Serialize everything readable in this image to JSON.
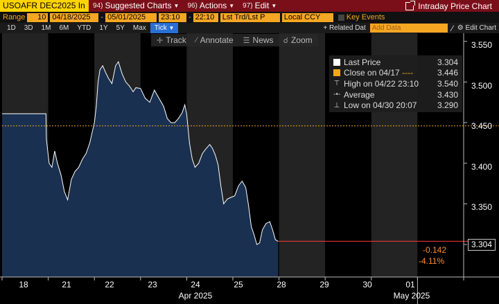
{
  "titlebar": {
    "security": "USOAFR DEC2025 In",
    "suggested_num": "94)",
    "suggested_label": "Suggested Charts",
    "actions_num": "96)",
    "actions_label": "Actions",
    "edit_num": "97)",
    "edit_label": "Edit",
    "intraday_label": "Intraday Price Chart"
  },
  "range": {
    "label": "Range",
    "count": "10",
    "start": "04/18/2025",
    "end": "05/01/2025",
    "time_start": "23:10",
    "time_end": "22:10",
    "mode": "Lst Trd/Lst P",
    "currency": "Local CCY",
    "key_events": "Key Events"
  },
  "periods": [
    "1D",
    "3D",
    "1M",
    "6M",
    "YTD",
    "1Y",
    "5Y",
    "Max",
    "Tick"
  ],
  "active_period": "Tick",
  "related_data": "+ Related Dat",
  "add_data_placeholder": "Add Data",
  "edit_chart": "Edit Chart",
  "tools": {
    "track": "Track",
    "annotate": "Annotate",
    "news": "News",
    "zoom": "Zoom"
  },
  "legend": [
    {
      "name": "Last Price",
      "value": "3.304",
      "key": "white-square"
    },
    {
      "name": "Close on 04/17",
      "value": "3.446",
      "key": "orange-square",
      "extra": "----"
    },
    {
      "name": "High on 04/22 23:10",
      "value": "3.540",
      "key": "high-marker"
    },
    {
      "name": "Average",
      "value": "3.430",
      "key": "average-marker"
    },
    {
      "name": "Low on 04/30 20:07",
      "value": "3.290",
      "key": "low-marker"
    }
  ],
  "last_price_tag": "3.304",
  "change_abs": "-0.142",
  "change_pct": "-4.11%",
  "colors": {
    "titlebar": "#7a0f19",
    "accent": "#f5a623",
    "fill": "#1a3050",
    "line": "#ffffff",
    "ref_line": "#f5a623"
  },
  "chart_data": {
    "type": "area",
    "x_dates": [
      "04/18",
      "04/21",
      "04/22",
      "04/23",
      "04/24",
      "04/25",
      "04/28",
      "04/29",
      "04/30",
      "05/01"
    ],
    "x_tick_labels": [
      "18",
      "21",
      "22",
      "23",
      "24",
      "25",
      "28",
      "29",
      "30",
      "01"
    ],
    "x_month_labels": [
      "Apr 2025",
      "May 2025"
    ],
    "y_ticks": [
      "3.550",
      "3.500",
      "3.450",
      "3.400",
      "3.350",
      "3.300"
    ],
    "ylim": [
      3.26,
      3.56
    ],
    "reference_close": 3.446,
    "points": [
      [
        0.0,
        3.461
      ],
      [
        0.95,
        3.461
      ],
      [
        0.96,
        3.43
      ],
      [
        1.02,
        3.4
      ],
      [
        1.08,
        3.395
      ],
      [
        1.14,
        3.415
      ],
      [
        1.2,
        3.4
      ],
      [
        1.28,
        3.385
      ],
      [
        1.35,
        3.365
      ],
      [
        1.42,
        3.355
      ],
      [
        1.5,
        3.38
      ],
      [
        1.58,
        3.39
      ],
      [
        1.66,
        3.395
      ],
      [
        1.74,
        3.405
      ],
      [
        1.82,
        3.412
      ],
      [
        1.9,
        3.425
      ],
      [
        1.96,
        3.44
      ],
      [
        2.0,
        3.45
      ],
      [
        2.04,
        3.47
      ],
      [
        2.08,
        3.5
      ],
      [
        2.12,
        3.515
      ],
      [
        2.18,
        3.52
      ],
      [
        2.24,
        3.512
      ],
      [
        2.3,
        3.505
      ],
      [
        2.38,
        3.498
      ],
      [
        2.46,
        3.52
      ],
      [
        2.52,
        3.525
      ],
      [
        2.6,
        3.51
      ],
      [
        2.68,
        3.5
      ],
      [
        2.76,
        3.495
      ],
      [
        2.84,
        3.488
      ],
      [
        2.9,
        3.493
      ],
      [
        3.0,
        3.492
      ],
      [
        3.1,
        3.48
      ],
      [
        3.2,
        3.475
      ],
      [
        3.3,
        3.49
      ],
      [
        3.4,
        3.48
      ],
      [
        3.5,
        3.47
      ],
      [
        3.58,
        3.455
      ],
      [
        3.66,
        3.45
      ],
      [
        3.74,
        3.45
      ],
      [
        3.82,
        3.455
      ],
      [
        3.9,
        3.462
      ],
      [
        3.96,
        3.472
      ],
      [
        4.0,
        3.46
      ],
      [
        4.06,
        3.425
      ],
      [
        4.12,
        3.405
      ],
      [
        4.18,
        3.395
      ],
      [
        4.26,
        3.4
      ],
      [
        4.34,
        3.412
      ],
      [
        4.42,
        3.418
      ],
      [
        4.5,
        3.423
      ],
      [
        4.56,
        3.418
      ],
      [
        4.62,
        3.41
      ],
      [
        4.68,
        3.398
      ],
      [
        4.74,
        3.372
      ],
      [
        4.8,
        3.35
      ],
      [
        4.88,
        3.356
      ],
      [
        4.96,
        3.358
      ],
      [
        5.04,
        3.36
      ],
      [
        5.12,
        3.372
      ],
      [
        5.2,
        3.378
      ],
      [
        5.28,
        3.37
      ],
      [
        5.34,
        3.348
      ],
      [
        5.4,
        3.322
      ],
      [
        5.46,
        3.312
      ],
      [
        5.52,
        3.3
      ],
      [
        5.58,
        3.302
      ],
      [
        5.64,
        3.318
      ],
      [
        5.72,
        3.326
      ],
      [
        5.8,
        3.328
      ],
      [
        5.86,
        3.318
      ],
      [
        5.92,
        3.306
      ],
      [
        5.98,
        3.304
      ]
    ]
  }
}
